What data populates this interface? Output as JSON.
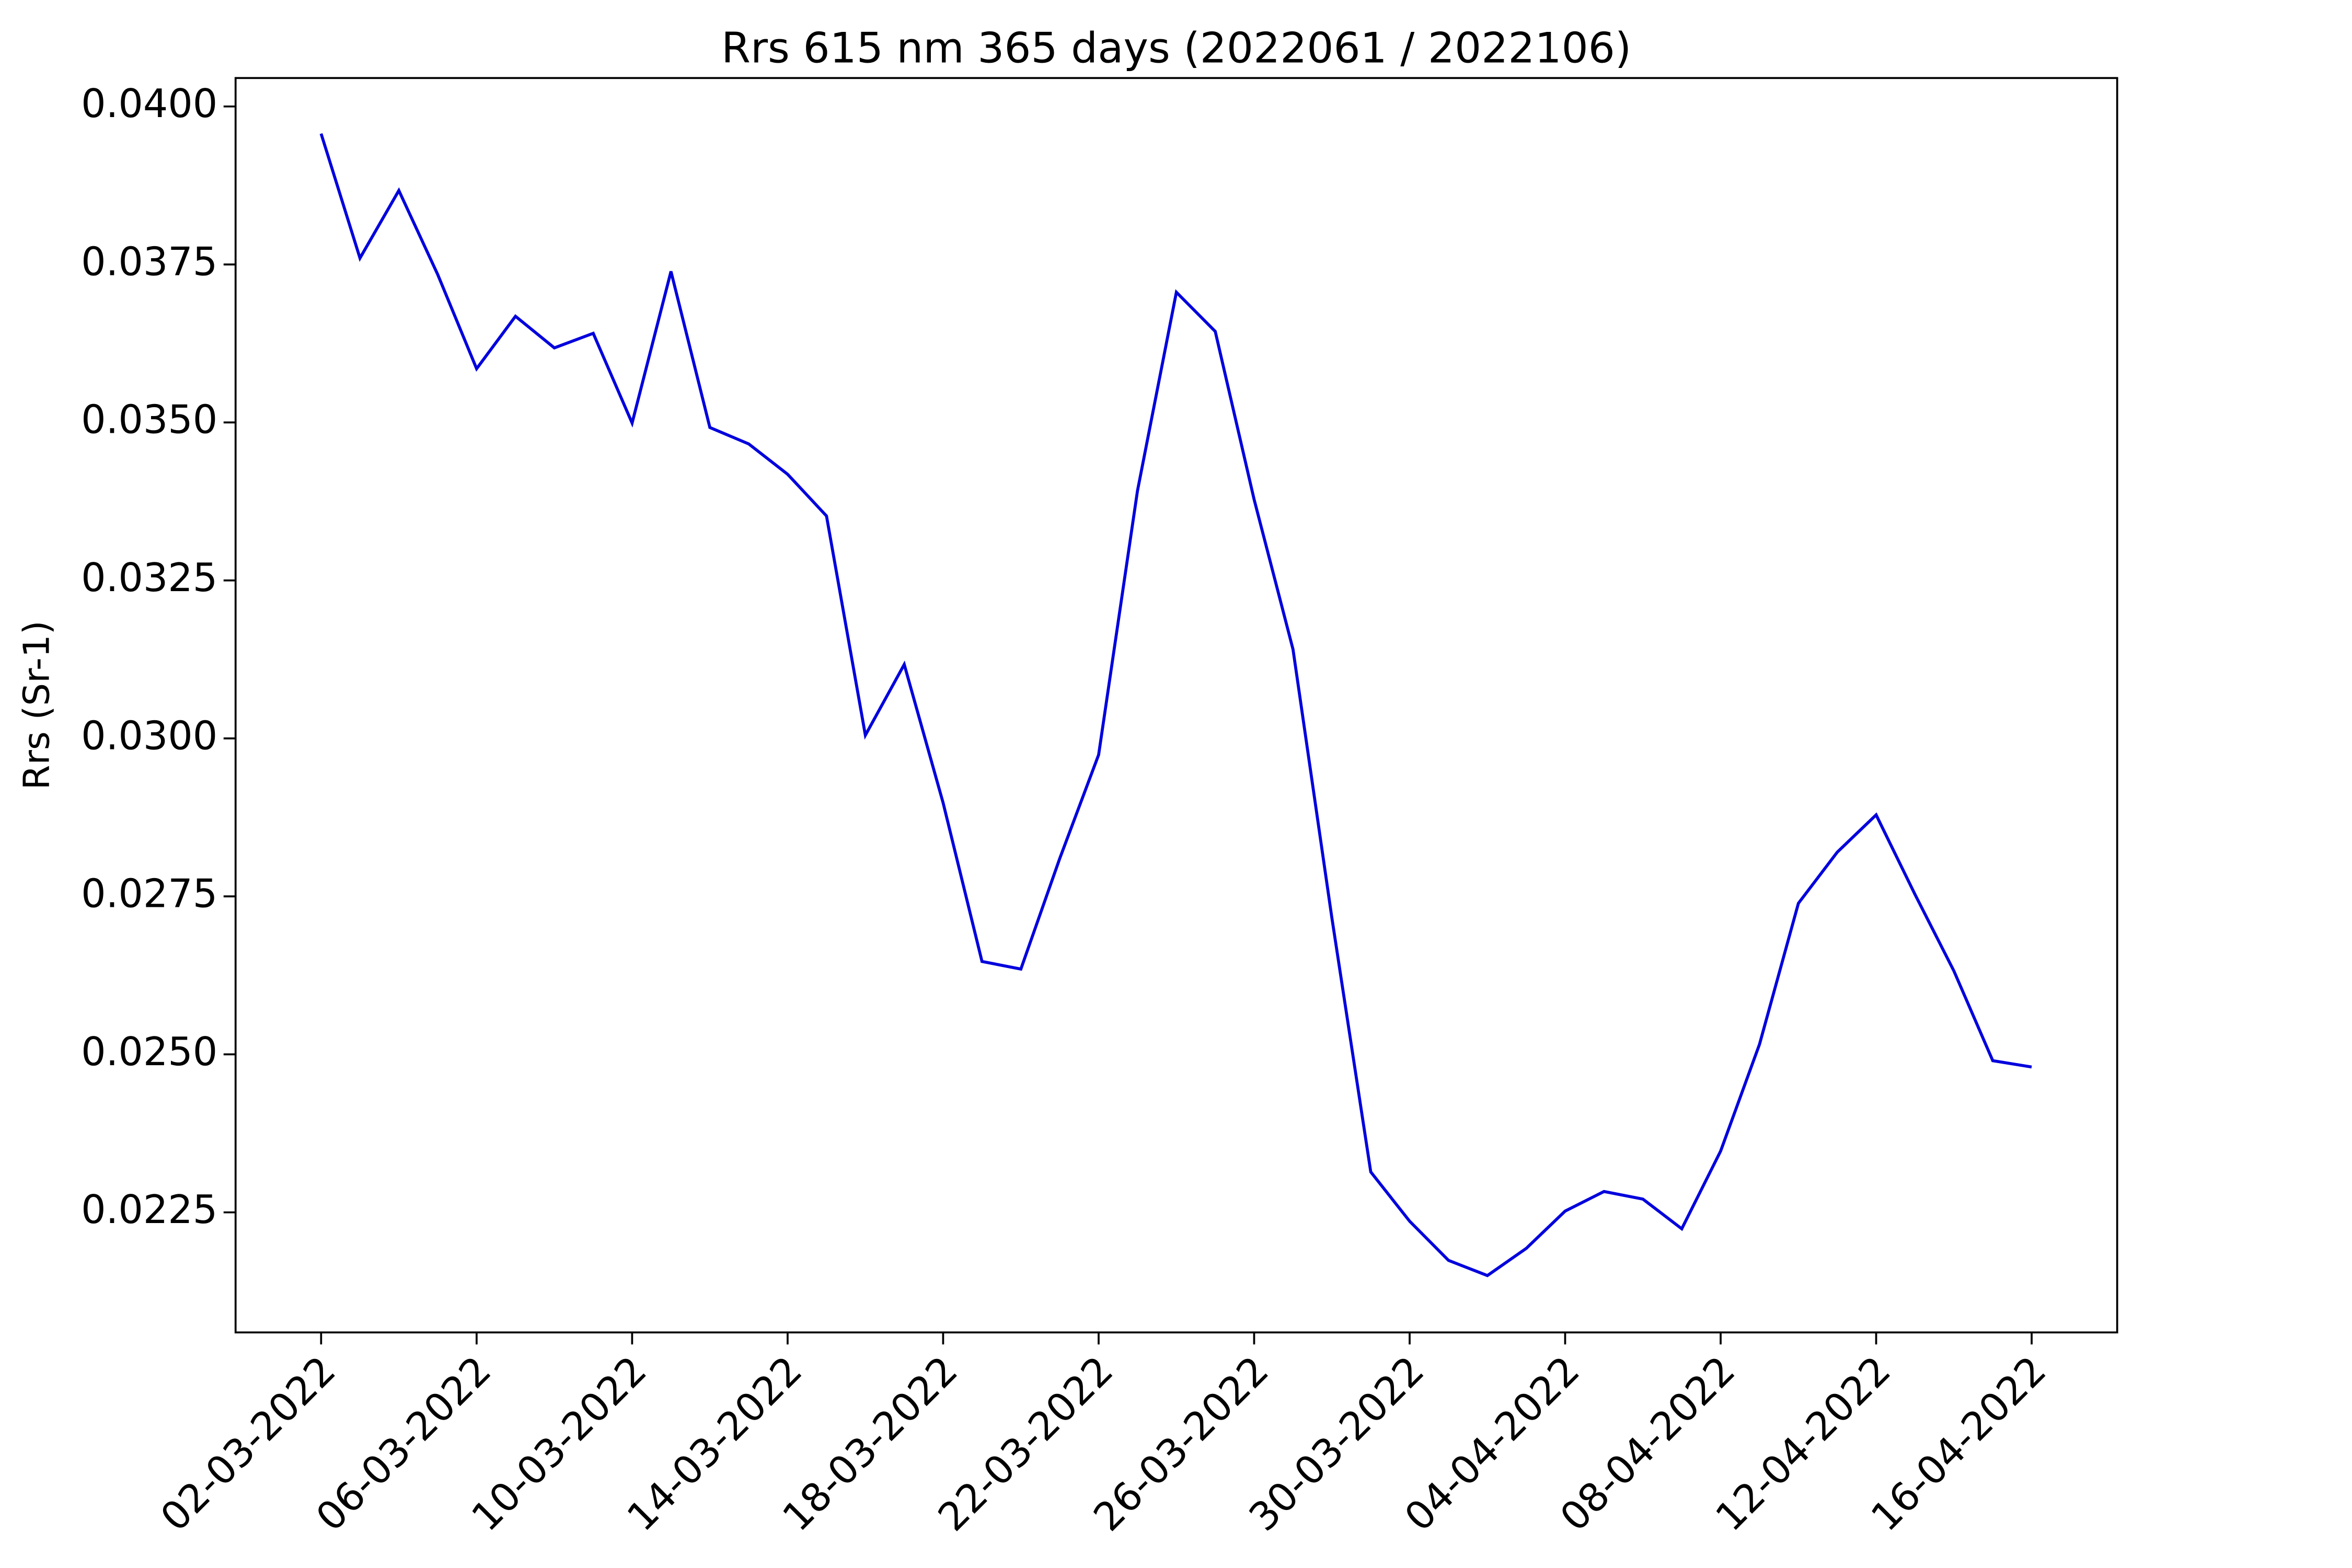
{
  "chart_data": {
    "type": "line",
    "title": "Rrs 615 nm 365 days (2022061 / 2022106)",
    "y_label": "Rrs (Sr-1)",
    "categories": [
      "02-03-2022",
      null,
      null,
      null,
      "06-03-2022",
      null,
      null,
      null,
      "10-03-2022",
      null,
      null,
      null,
      "14-03-2022",
      null,
      null,
      null,
      "18-03-2022",
      null,
      null,
      null,
      "22-03-2022",
      null,
      null,
      null,
      "26-03-2022",
      null,
      null,
      null,
      "30-03-2022",
      null,
      null,
      null,
      "04-04-2022",
      null,
      null,
      null,
      "08-04-2022",
      null,
      null,
      null,
      "12-04-2022",
      null,
      null,
      null,
      "16-04-2022"
    ],
    "series": [
      {
        "name": "Rrs 615 nm",
        "color": "#0000dd",
        "values": [
          0.03957,
          0.0376,
          0.03867,
          0.03734,
          0.03585,
          0.03668,
          0.03618,
          0.03641,
          0.03499,
          0.03739,
          0.03492,
          0.03466,
          0.03418,
          0.03352,
          0.03005,
          0.03117,
          0.02898,
          0.02647,
          0.02635,
          0.0281,
          0.02974,
          0.03392,
          0.03706,
          0.03644,
          0.03378,
          0.03141,
          0.02716,
          0.02314,
          0.02236,
          0.02174,
          0.0215,
          0.02193,
          0.02252,
          0.02283,
          0.02271,
          0.02224,
          0.02347,
          0.02516,
          0.02739,
          0.0282,
          0.02879,
          0.02753,
          0.02632,
          0.0249,
          0.0248
        ]
      }
    ],
    "ylim": [
      0.0206,
      0.04045
    ],
    "yticks": [
      {
        "value": 0.0225,
        "label": "0.0225"
      },
      {
        "value": 0.025,
        "label": "0.0250"
      },
      {
        "value": 0.0275,
        "label": "0.0275"
      },
      {
        "value": 0.03,
        "label": "0.0300"
      },
      {
        "value": 0.0325,
        "label": "0.0325"
      },
      {
        "value": 0.035,
        "label": "0.0350"
      },
      {
        "value": 0.0375,
        "label": "0.0375"
      },
      {
        "value": 0.04,
        "label": "0.0400"
      }
    ],
    "grid": false
  }
}
